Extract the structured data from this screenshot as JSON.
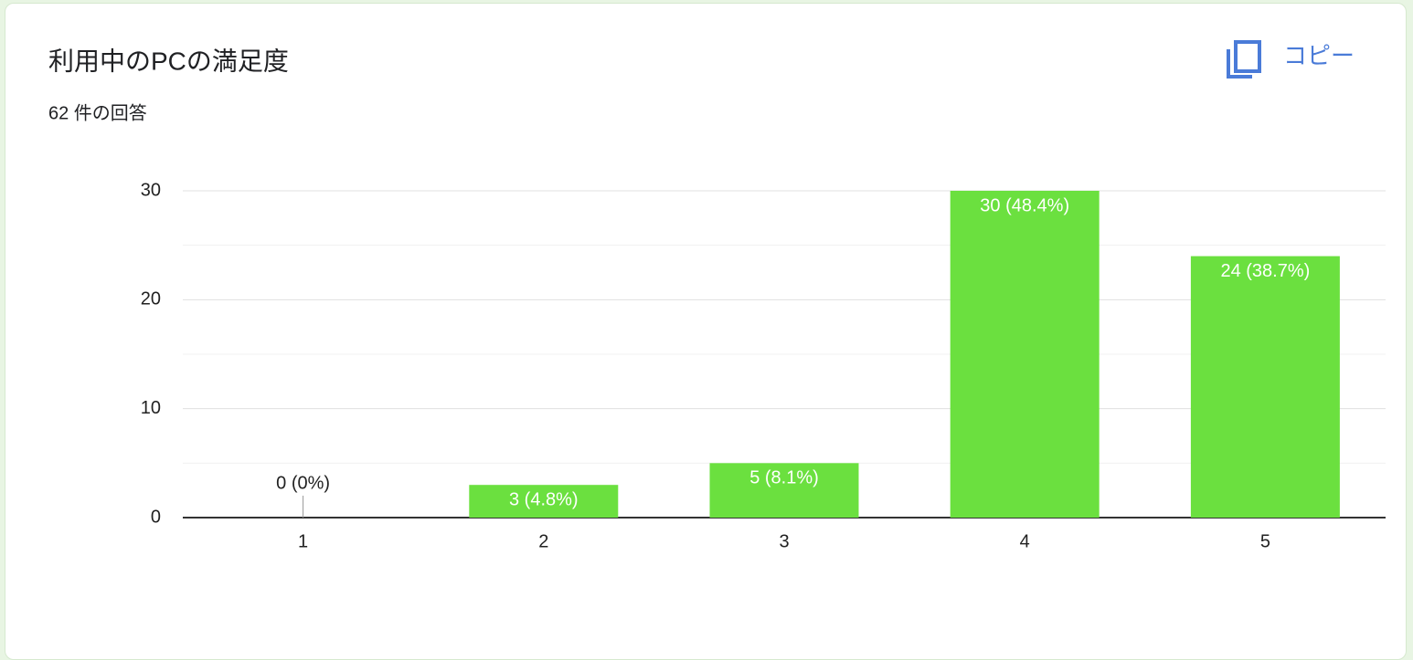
{
  "chart_data": {
    "type": "bar",
    "title": "利用中のPCの満足度",
    "subtitle": "62 件の回答",
    "copy_button": "コピー",
    "categories": [
      "1",
      "2",
      "3",
      "4",
      "5"
    ],
    "values": [
      0,
      3,
      5,
      30,
      24
    ],
    "value_labels": [
      "0 (0%)",
      "3 (4.8%)",
      "5 (8.1%)",
      "30 (48.4%)",
      "24 (38.7%)"
    ],
    "color": "#6be03f",
    "ylim": [
      0,
      30
    ],
    "yticks": [
      0,
      10,
      20,
      30
    ],
    "yminorticks": [
      5,
      15,
      25
    ],
    "grid": true
  }
}
